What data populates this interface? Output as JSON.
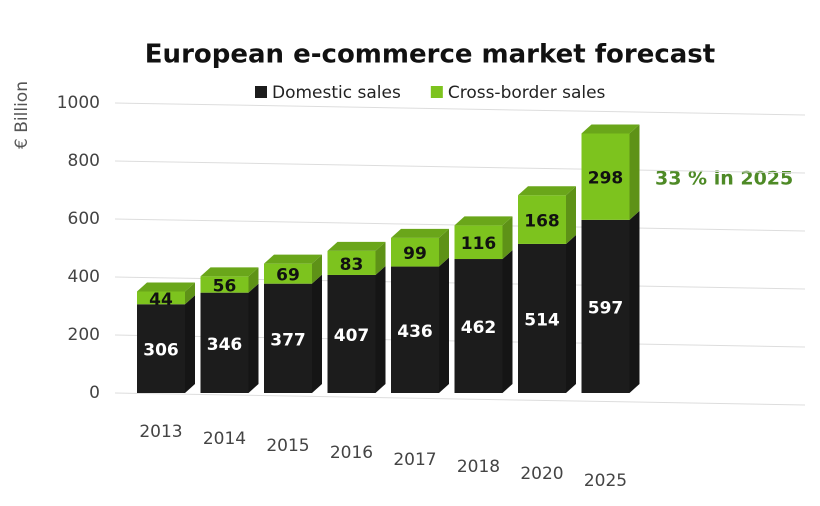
{
  "chart_data": {
    "type": "bar",
    "stacked": true,
    "title": "European e-commerce market forecast",
    "y_label": "€ Billion",
    "annotation": "33 % in 2025",
    "categories": [
      "2013",
      "2014",
      "2015",
      "2016",
      "2017",
      "2018",
      "2020",
      "2025"
    ],
    "series": [
      {
        "name": "Domestic sales",
        "color": "#1c1c1c",
        "values": [
          306,
          346,
          377,
          407,
          436,
          462,
          514,
          597
        ]
      },
      {
        "name": "Cross-border sales",
        "color": "#7dc31e",
        "values": [
          44,
          56,
          69,
          83,
          99,
          116,
          168,
          298
        ]
      }
    ],
    "ylim": [
      0,
      1000
    ],
    "yticks": [
      0,
      200,
      400,
      600,
      800,
      1000
    ],
    "grid": true
  }
}
